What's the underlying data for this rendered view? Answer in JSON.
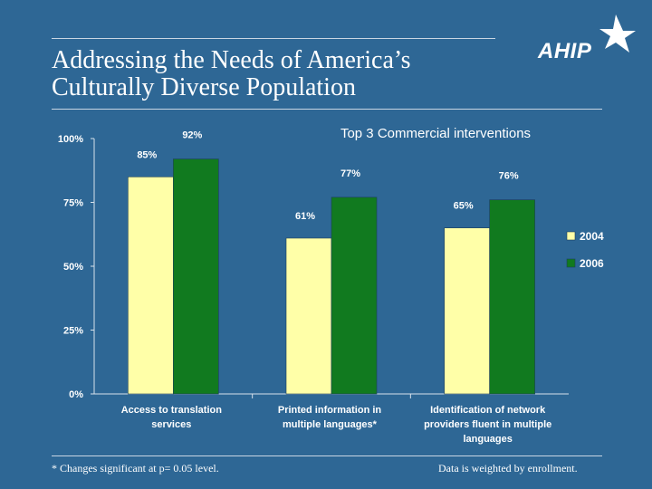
{
  "slide": {
    "title": "Addressing the Needs of America’s\nCulturally Diverse Population",
    "logo_text": "AHIP",
    "footnote_left": "* Changes significant at p= 0.05 level.",
    "footnote_right": "Data is weighted by enrollment."
  },
  "colors": {
    "background": "#2e6795",
    "series_2004": "#ffffa8",
    "series_2006": "#117a1f"
  },
  "chart_data": {
    "type": "bar",
    "title": "Top 3 Commercial interventions",
    "categories": [
      [
        "Access to translation",
        "services"
      ],
      [
        "Printed information in",
        "multiple languages*"
      ],
      [
        "Identification of network",
        "providers fluent in multiple",
        "languages"
      ]
    ],
    "series": [
      {
        "name": "2004",
        "values": [
          85,
          61,
          65
        ],
        "labels": [
          "85%",
          "61%",
          "65%"
        ]
      },
      {
        "name": "2006",
        "values": [
          92,
          77,
          76
        ],
        "labels": [
          "92%",
          "77%",
          "76%"
        ]
      }
    ],
    "ylim": [
      0,
      100
    ],
    "yticks": [
      0,
      25,
      50,
      75,
      100
    ],
    "ytick_labels": [
      "0%",
      "25%",
      "50%",
      "75%",
      "100%"
    ],
    "legend": [
      "2004",
      "2006"
    ],
    "legend_position": "right",
    "xlabel": "",
    "ylabel": ""
  }
}
